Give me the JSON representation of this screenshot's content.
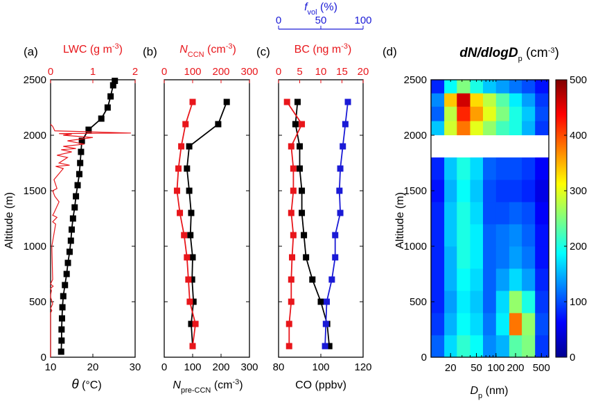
{
  "colors": {
    "black": "#000000",
    "red": "#e8161b",
    "blue": "#1a1ad6"
  },
  "chart_data": [
    {
      "id": "a",
      "panel_label": "(a)",
      "type": "line",
      "ylabel": "Altitude (m)",
      "ylim": [
        0,
        2500
      ],
      "yticks": [
        "0",
        "500",
        "1000",
        "1500",
        "2000",
        "2500"
      ],
      "bottom_axis": {
        "label_symbol": "θ",
        "label_unit": " (°C)",
        "xlim": [
          10,
          30
        ],
        "ticks": [
          "10",
          "20",
          "30"
        ]
      },
      "top_axis": {
        "label": "LWC (g m",
        "label_exp": "-3",
        "label_end": ")",
        "xlim": [
          0,
          2
        ],
        "ticks": [
          "0",
          "1",
          "2"
        ]
      },
      "series": [
        {
          "axis": "bottom",
          "color": "black",
          "x": [
            12.5,
            12.6,
            12.6,
            12.7,
            12.8,
            13.0,
            13.4,
            13.8,
            14.1,
            14.5,
            14.8,
            15.0,
            15.3,
            15.7,
            16.0,
            16.4,
            16.8,
            17.0,
            17.2,
            17.4,
            19.0,
            22.0,
            23.5,
            24.2,
            24.8,
            25.2
          ],
          "y": [
            50,
            150,
            250,
            350,
            450,
            550,
            650,
            750,
            850,
            950,
            1050,
            1150,
            1250,
            1350,
            1450,
            1550,
            1650,
            1750,
            1850,
            1950,
            2050,
            2150,
            2250,
            2350,
            2450,
            2490
          ]
        },
        {
          "axis": "top",
          "color": "red",
          "x": [
            0,
            0,
            0.03,
            0,
            0.05,
            0.02,
            0,
            0,
            0.02,
            0,
            0.06,
            0,
            0.05,
            0.03,
            0.12,
            0.05,
            0.1,
            0.15,
            0.05,
            0.08,
            0.2,
            0.1,
            0.05,
            0.15,
            0.08,
            0.3,
            0.12,
            0.45,
            0.2,
            0.4,
            0.15,
            0.5,
            0.25,
            0.6,
            0.3,
            0.8,
            0.4,
            1.0,
            0.3,
            0.5,
            0.2,
            1.9,
            0.1,
            0.05,
            0
          ],
          "y": [
            0,
            400,
            420,
            440,
            480,
            520,
            540,
            560,
            600,
            620,
            640,
            660,
            700,
            1000,
            1200,
            1220,
            1240,
            1260,
            1280,
            1300,
            1400,
            1450,
            1500,
            1520,
            1600,
            1700,
            1720,
            1730,
            1750,
            1800,
            1820,
            1850,
            1870,
            1880,
            1900,
            1920,
            1950,
            1980,
            2000,
            2010,
            2015,
            2020,
            2040,
            2080,
            2100
          ]
        }
      ]
    },
    {
      "id": "b",
      "panel_label": "(b)",
      "type": "line",
      "ylim": [
        0,
        2500
      ],
      "bottom_axis": {
        "label_n": "N",
        "label_sub": "pre-CCN",
        "label_unit": " (cm",
        "label_exp": "-3",
        "label_end": ")",
        "xlim": [
          0,
          300
        ],
        "ticks": [
          "0",
          "100",
          "200",
          "300"
        ]
      },
      "top_axis": {
        "label_n": "N",
        "label_sub": "CCN",
        "label_unit": " (cm",
        "label_exp": "-3",
        "label_end": ")",
        "xlim": [
          0,
          300
        ],
        "ticks": [
          "0",
          "100",
          "200",
          "300"
        ]
      },
      "series": [
        {
          "axis": "bottom",
          "color": "black",
          "x": [
            100,
            95,
            103,
            98,
            100,
            92,
            95,
            88,
            80,
            88,
            190,
            220
          ],
          "y": [
            100,
            300,
            500,
            700,
            900,
            1100,
            1300,
            1500,
            1700,
            1900,
            2100,
            2300
          ]
        },
        {
          "axis": "top",
          "color": "red",
          "x": [
            100,
            110,
            90,
            85,
            80,
            70,
            55,
            45,
            50,
            60,
            75,
            100
          ],
          "y": [
            100,
            300,
            500,
            700,
            900,
            1100,
            1300,
            1500,
            1700,
            1900,
            2100,
            2300
          ]
        }
      ]
    },
    {
      "id": "c",
      "panel_label": "(c)",
      "type": "line",
      "ylim": [
        0,
        2500
      ],
      "bottom_axis": {
        "label": "CO (ppbv)",
        "xlim": [
          80,
          120
        ],
        "ticks": [
          "80",
          "100",
          "120"
        ]
      },
      "top_axis": {
        "label": "BC (ng m",
        "label_exp": "-3",
        "label_end": ")",
        "xlim": [
          0,
          20
        ],
        "ticks": [
          "0",
          "5",
          "10",
          "15",
          "20"
        ]
      },
      "top_axis2": {
        "label_f": "f",
        "label_sub": "vol",
        "label_unit": " (%)",
        "xlim": [
          0,
          100
        ],
        "ticks": [
          "0",
          "50",
          "100"
        ]
      },
      "series": [
        {
          "axis": "bottom",
          "color": "black",
          "x": [
            104,
            103,
            100,
            96,
            93,
            92,
            91,
            91,
            90,
            90,
            88,
            89
          ],
          "y": [
            100,
            300,
            500,
            700,
            900,
            1100,
            1300,
            1500,
            1700,
            1900,
            2100,
            2300
          ]
        },
        {
          "axis": "top",
          "color": "red",
          "x": [
            2.5,
            2.5,
            3.0,
            3.0,
            3.2,
            3.5,
            3.0,
            3.5,
            3.5,
            3.0,
            5.5,
            2.0
          ],
          "y": [
            100,
            300,
            500,
            700,
            900,
            1100,
            1300,
            1500,
            1700,
            1900,
            2100,
            2300
          ]
        },
        {
          "axis": "top2",
          "color": "blue",
          "x": [
            55,
            56,
            57,
            63,
            67,
            67,
            73,
            72,
            73,
            76,
            79,
            82
          ],
          "y": [
            100,
            300,
            500,
            700,
            900,
            1100,
            1300,
            1500,
            1700,
            1900,
            2100,
            2300
          ]
        }
      ]
    },
    {
      "id": "d",
      "panel_label": "(d)",
      "type": "heatmap",
      "title": "dN/dlogD",
      "title_sub": "p",
      "title_unit": " (cm",
      "title_exp": "-3",
      "title_end": ")",
      "ylabel": "Altitude (m)",
      "ylim": [
        0,
        2500
      ],
      "yticks": [
        "0",
        "500",
        "1000",
        "1500",
        "2000",
        "2500"
      ],
      "xlabel": "D",
      "xlabel_sub": "p",
      "xlabel_unit": " (nm)",
      "xlim": [
        10,
        650
      ],
      "x_scale": "log",
      "xticks": [
        {
          "v": 20,
          "t": "20"
        },
        {
          "v": 50,
          "t": "50"
        },
        {
          "v": 100,
          "t": "100"
        },
        {
          "v": 200,
          "t": "200"
        },
        {
          "v": 500,
          "t": "500"
        }
      ],
      "colorbar": {
        "range": [
          0,
          500
        ],
        "ticks": [
          "0",
          "100",
          "200",
          "300",
          "400",
          "500"
        ]
      },
      "gap": [
        1800,
        2000
      ],
      "x_edges": [
        10,
        16,
        25,
        40,
        63,
        100,
        160,
        250,
        400,
        650
      ],
      "rows": [
        {
          "y0": 0,
          "y1": 200,
          "values": [
            110,
            170,
            210,
            190,
            130,
            150,
            230,
            250,
            90
          ]
        },
        {
          "y0": 200,
          "y1": 400,
          "values": [
            90,
            150,
            190,
            170,
            120,
            180,
            380,
            260,
            100
          ]
        },
        {
          "y0": 400,
          "y1": 600,
          "values": [
            80,
            140,
            180,
            160,
            110,
            170,
            260,
            200,
            90
          ]
        },
        {
          "y0": 600,
          "y1": 800,
          "values": [
            80,
            150,
            190,
            170,
            110,
            140,
            170,
            140,
            80
          ]
        },
        {
          "y0": 800,
          "y1": 1000,
          "values": [
            80,
            150,
            200,
            180,
            110,
            120,
            140,
            120,
            70
          ]
        },
        {
          "y0": 1000,
          "y1": 1200,
          "values": [
            80,
            160,
            200,
            180,
            110,
            120,
            130,
            110,
            70
          ]
        },
        {
          "y0": 1200,
          "y1": 1400,
          "values": [
            80,
            160,
            200,
            170,
            100,
            100,
            110,
            100,
            60
          ]
        },
        {
          "y0": 1400,
          "y1": 1600,
          "values": [
            70,
            150,
            190,
            160,
            100,
            90,
            90,
            80,
            50
          ]
        },
        {
          "y0": 1600,
          "y1": 1800,
          "values": [
            80,
            160,
            200,
            170,
            110,
            100,
            100,
            90,
            60
          ]
        },
        {
          "y0": 2000,
          "y1": 2130,
          "values": [
            160,
            290,
            380,
            300,
            260,
            220,
            200,
            150,
            90
          ]
        },
        {
          "y0": 2130,
          "y1": 2260,
          "values": [
            110,
            280,
            420,
            360,
            300,
            250,
            200,
            160,
            100
          ]
        },
        {
          "y0": 2260,
          "y1": 2380,
          "values": [
            130,
            340,
            460,
            330,
            280,
            230,
            180,
            140,
            90
          ]
        },
        {
          "y0": 2380,
          "y1": 2500,
          "values": [
            80,
            190,
            250,
            200,
            160,
            140,
            120,
            100,
            70
          ]
        }
      ]
    }
  ]
}
